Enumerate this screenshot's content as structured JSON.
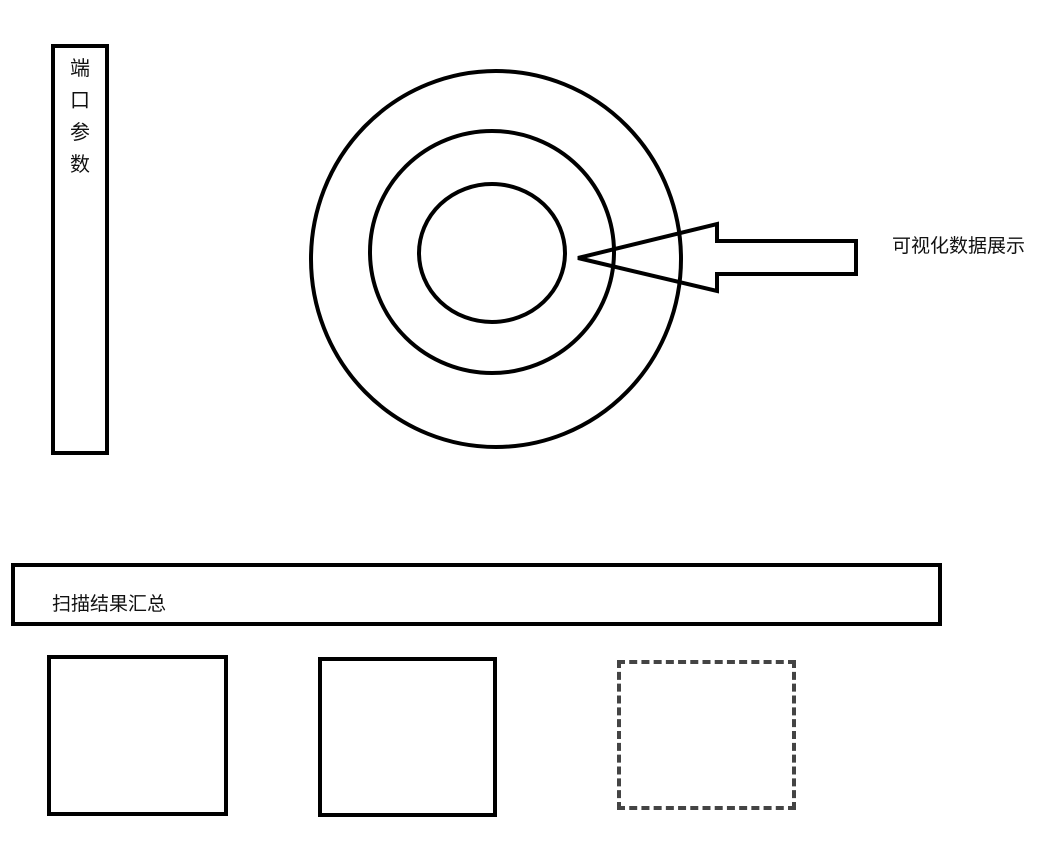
{
  "port_panel": {
    "label_chars": [
      "端",
      "口",
      "参",
      "数"
    ]
  },
  "visual": {
    "label": "可视化数据展示"
  },
  "summary": {
    "label": "扫描结果汇总"
  },
  "colors": {
    "stroke": "#000000",
    "background": "#ffffff"
  }
}
